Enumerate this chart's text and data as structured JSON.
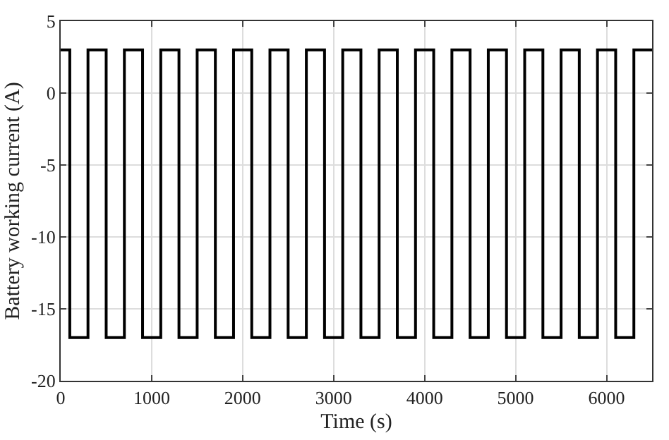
{
  "chart_data": {
    "type": "step",
    "xlabel": "Time (s)",
    "ylabel": "Battery working current (A)",
    "x": [
      0,
      100,
      300,
      500,
      700,
      900,
      1100,
      1300,
      1500,
      1700,
      1900,
      2100,
      2300,
      2500,
      2700,
      2900,
      3100,
      3300,
      3500,
      3700,
      3900,
      4100,
      4300,
      4500,
      4700,
      4900,
      5100,
      5300,
      5500,
      5700,
      5900,
      6100,
      6300,
      6500
    ],
    "series": [
      {
        "color": "#000000",
        "values": [
          3,
          -17,
          3,
          -17,
          3,
          -17,
          3,
          -17,
          3,
          -17,
          3,
          -17,
          3,
          -17,
          3,
          -17,
          3,
          -17,
          3,
          -17,
          3,
          -17,
          3,
          -17,
          3,
          -17,
          3,
          -17,
          3,
          -17,
          3,
          -17,
          3,
          3
        ]
      }
    ],
    "xlim": [
      0,
      6500
    ],
    "xticks": [
      0,
      1000,
      2000,
      3000,
      4000,
      5000,
      6000
    ],
    "ylim": [
      -20,
      5
    ],
    "yticks": [
      -20,
      -15,
      -10,
      -5,
      0,
      5
    ],
    "grid": true,
    "marker": "none",
    "line_style": "solid"
  }
}
